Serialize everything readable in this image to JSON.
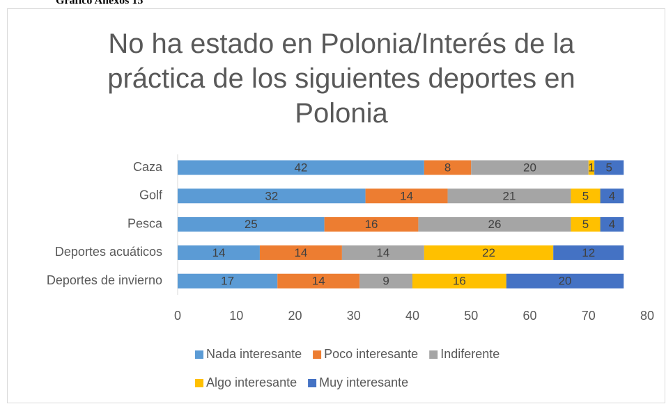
{
  "caption": "Gráfico Anexos 15",
  "chart_data": {
    "type": "stacked_bar_horizontal",
    "title": "No ha estado en Polonia/Interés de la práctica de los siguientes deportes en Polonia",
    "categories": [
      "Caza",
      "Golf",
      "Pesca",
      "Deportes acuáticos",
      "Deportes de invierno"
    ],
    "series": [
      {
        "name": "Nada interesante",
        "color": "#5b9bd5",
        "values": [
          42,
          32,
          25,
          14,
          17
        ]
      },
      {
        "name": "Poco interesante",
        "color": "#ed7d31",
        "values": [
          8,
          14,
          16,
          14,
          14
        ]
      },
      {
        "name": "Indiferente",
        "color": "#a5a5a5",
        "values": [
          20,
          21,
          26,
          14,
          9
        ]
      },
      {
        "name": "Algo interesante",
        "color": "#ffc000",
        "values": [
          1,
          5,
          5,
          22,
          16
        ]
      },
      {
        "name": "Muy interesante",
        "color": "#4472c4",
        "values": [
          5,
          4,
          4,
          12,
          20
        ]
      }
    ],
    "xlim": [
      0,
      80
    ],
    "xticks": [
      0,
      10,
      20,
      30,
      40,
      50,
      60,
      70,
      80
    ],
    "grid": false,
    "legend": "bottom"
  }
}
